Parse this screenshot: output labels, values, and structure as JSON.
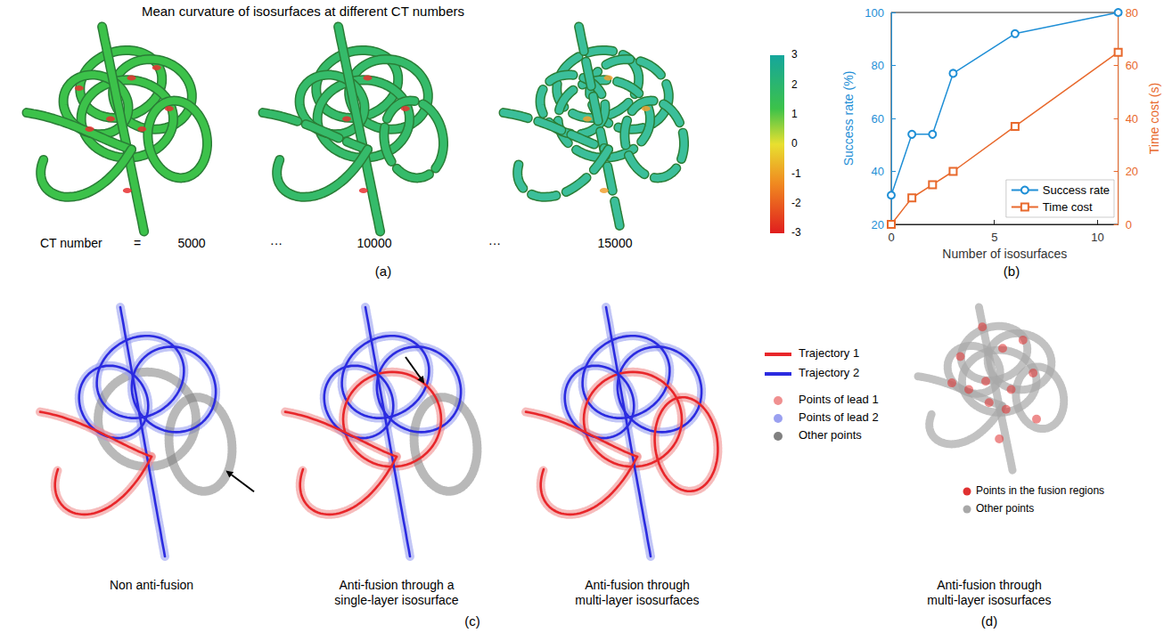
{
  "panel_a": {
    "title": "Mean curvature of isosurfaces at different CT numbers",
    "ct_label": "CT number",
    "ct_equals": "=",
    "ct_numbers": [
      5000,
      10000,
      15000
    ],
    "ellipsis": "···",
    "colorbar": {
      "range": [
        -3,
        3
      ],
      "ticks": [
        3,
        2,
        1,
        0,
        -1,
        -2,
        -3
      ]
    },
    "letter": "(a)"
  },
  "panel_b": {
    "letter": "(b)"
  },
  "chart_data": {
    "type": "line",
    "xlabel": "Number of isosurfaces",
    "ylabel": "Success rate (%)",
    "y2label": "Time cost (s)",
    "x": [
      0,
      1,
      2,
      3,
      6,
      11
    ],
    "xlim": [
      0,
      11
    ],
    "xticks": [
      0,
      5,
      10
    ],
    "ylim": [
      20,
      100
    ],
    "yticks": [
      20,
      40,
      60,
      80,
      100
    ],
    "y2lim": [
      0,
      80
    ],
    "y2ticks": [
      0,
      20,
      40,
      60,
      80
    ],
    "series": [
      {
        "name": "Success rate",
        "color": "#1f8fd6",
        "marker": "circle",
        "values": [
          31,
          54,
          54,
          77,
          92,
          100
        ]
      },
      {
        "name": "Time cost",
        "color": "#e8692c",
        "marker": "square",
        "axis": "y2",
        "values": [
          0,
          10,
          15,
          20,
          37,
          65
        ]
      }
    ],
    "legend": "lower right",
    "grid": false
  },
  "panel_c": {
    "letter": "(c)",
    "captions": [
      "Non anti-fusion",
      "Anti-fusion through a single-layer isosurface",
      "Anti-fusion through multi-layer isosurfaces"
    ],
    "legend_lines": [
      {
        "label": "Trajectory 1",
        "color": "#e8262a"
      },
      {
        "label": "Trajectory 2",
        "color": "#2b2be0"
      }
    ],
    "legend_points": [
      {
        "label": "Points of lead 1",
        "color": "#f09090"
      },
      {
        "label": "Points of lead 2",
        "color": "#9aa0f0"
      },
      {
        "label": "Other points",
        "color": "#808080"
      }
    ]
  },
  "panel_d": {
    "letter": "(d)",
    "caption": "Anti-fusion through multi-layer isosurfaces",
    "legend_points": [
      {
        "label": "Points in the fusion regions",
        "color": "#e03030"
      },
      {
        "label": "Other points",
        "color": "#a8a8a8"
      }
    ]
  }
}
